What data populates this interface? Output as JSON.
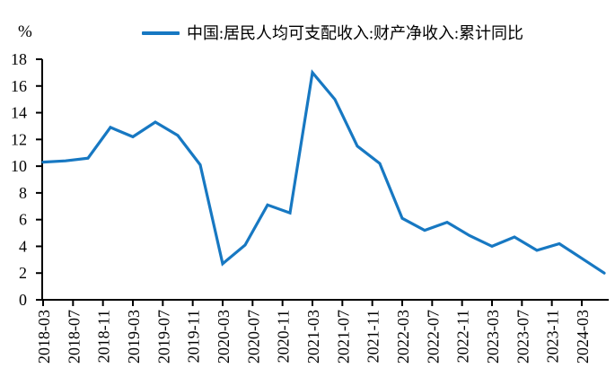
{
  "unit_label": "%",
  "legend": {
    "series_label": "中国:居民人均可支配收入:财产净收入:累计同比"
  },
  "colors": {
    "line": "#1778C2",
    "axis": "#000000",
    "background": "#FFFFFF"
  },
  "chart_data": {
    "type": "line",
    "title": "",
    "ylabel": "%",
    "xlabel": "",
    "grid": false,
    "legend_position": "top-center",
    "ylim": [
      0,
      18
    ],
    "y_ticks": [
      0,
      2,
      4,
      6,
      8,
      10,
      12,
      14,
      16,
      18
    ],
    "x_tick_labels": [
      "2018-03",
      "2018-07",
      "2018-11",
      "2019-03",
      "2019-07",
      "2019-11",
      "2020-03",
      "2020-07",
      "2020-11",
      "2021-03",
      "2021-07",
      "2021-11",
      "2022-03",
      "2022-07",
      "2022-11",
      "2023-03",
      "2023-07",
      "2023-11",
      "2024-03"
    ],
    "series": [
      {
        "name": "中国:居民人均可支配收入:财产净收入:累计同比",
        "color": "#1778C2",
        "x": [
          "2018-03",
          "2018-06",
          "2018-09",
          "2018-12",
          "2019-03",
          "2019-06",
          "2019-09",
          "2019-12",
          "2020-03",
          "2020-06",
          "2020-09",
          "2020-12",
          "2021-03",
          "2021-06",
          "2021-09",
          "2021-12",
          "2022-03",
          "2022-06",
          "2022-09",
          "2022-12",
          "2023-03",
          "2023-06",
          "2023-09",
          "2023-12",
          "2024-03",
          "2024-06"
        ],
        "values": [
          10.3,
          10.4,
          10.6,
          12.9,
          12.2,
          13.3,
          12.3,
          10.1,
          2.7,
          4.1,
          7.1,
          6.5,
          17.0,
          15.0,
          11.5,
          10.2,
          6.1,
          5.2,
          5.8,
          4.8,
          4.0,
          4.7,
          3.7,
          4.2,
          3.1,
          2.0
        ]
      }
    ]
  }
}
